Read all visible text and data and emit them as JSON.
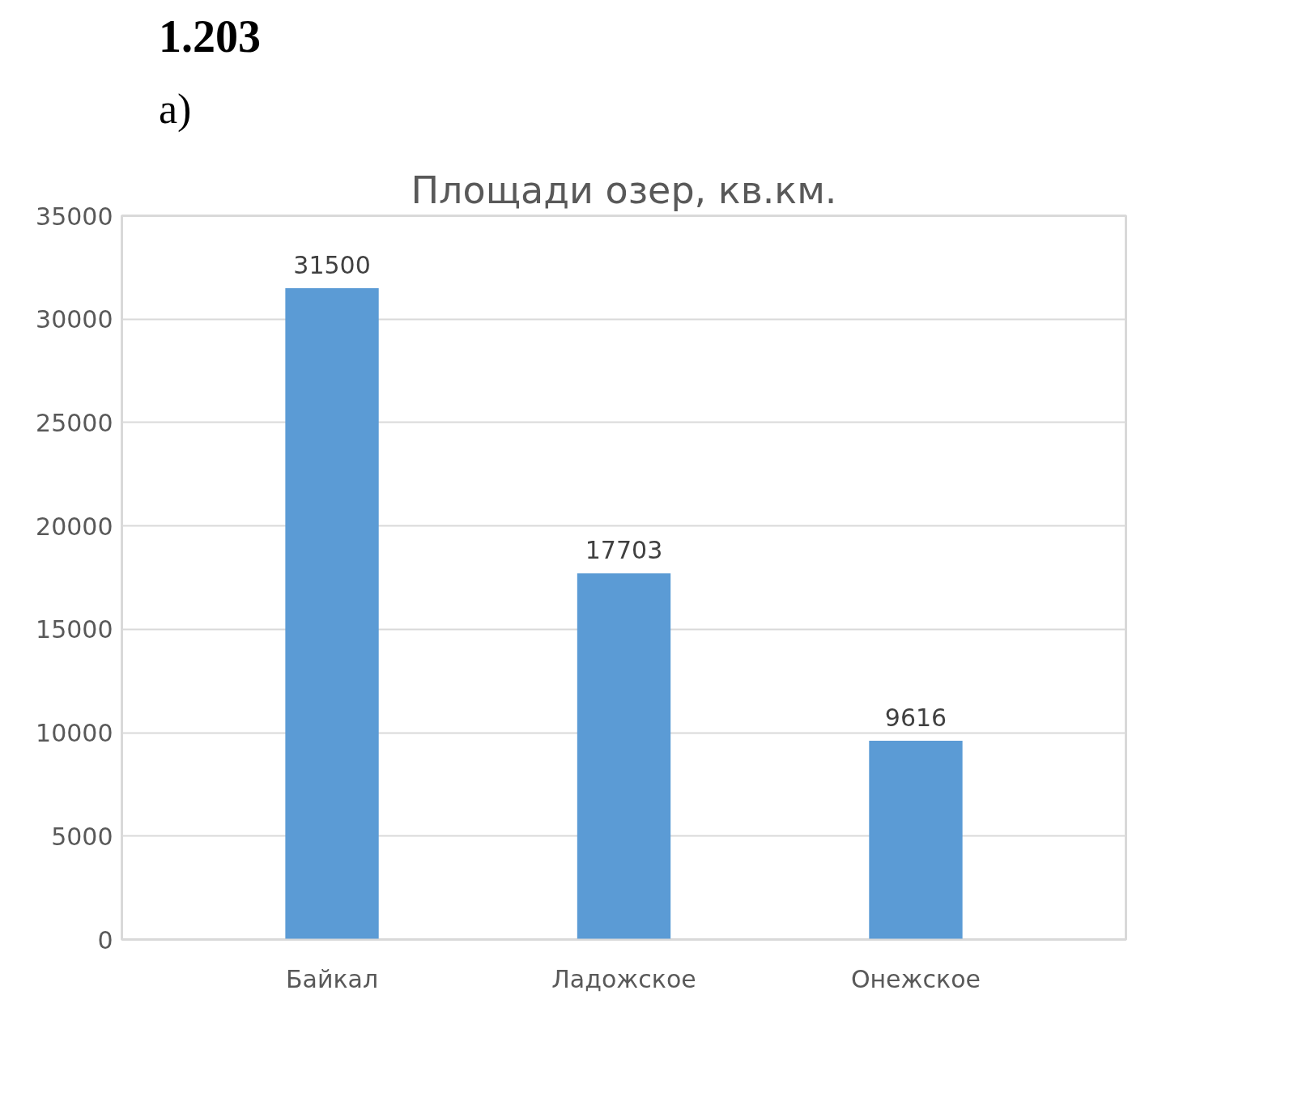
{
  "chart_data": {
    "type": "bar",
    "title": "Площади озер, кв.км.",
    "annotations": [
      "1.203",
      "а)"
    ],
    "categories": [
      "Байкал",
      "Ладожское",
      "Онежское"
    ],
    "values": [
      31500,
      17703,
      9616
    ],
    "color": "#5b9bd5",
    "ylim": [
      0,
      35000
    ],
    "yticks": [
      0,
      5000,
      10000,
      15000,
      20000,
      25000,
      30000,
      35000
    ],
    "grid": "y",
    "data_labels": true
  }
}
